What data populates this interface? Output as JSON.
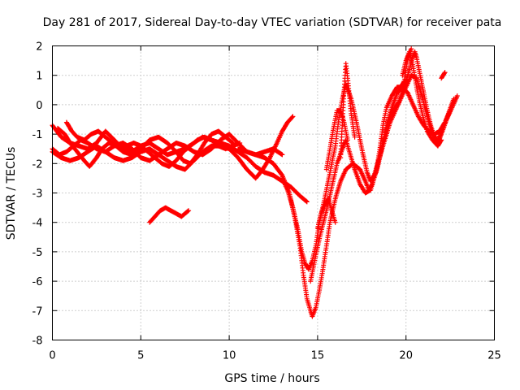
{
  "chart_data": {
    "type": "scatter",
    "title": "Day 281 of 2017, Sidereal Day-to-day VTEC variation (SDTVAR) for receiver pata",
    "xlabel": "GPS time / hours",
    "ylabel": "SDTVAR / TECUs",
    "xlim": [
      0,
      25
    ],
    "ylim": [
      -8,
      2
    ],
    "xticks": [
      "0",
      "5",
      "10",
      "15",
      "20",
      "25"
    ],
    "yticks": [
      "2",
      "1",
      "0",
      "-1",
      "-2",
      "-3",
      "-4",
      "-5",
      "-6",
      "-7",
      "-8"
    ],
    "grid": true,
    "marker": "plus",
    "color": "#ff0000",
    "series": [
      {
        "values": [
          [
            0,
            -0.7
          ],
          [
            0.5,
            -1.1
          ],
          [
            1,
            -1.3
          ],
          [
            1.5,
            -1.4
          ],
          [
            2,
            -1.5
          ],
          [
            2.5,
            -1.3
          ],
          [
            3,
            -0.9
          ],
          [
            3.5,
            -1.2
          ],
          [
            4,
            -1.5
          ],
          [
            4.5,
            -1.6
          ],
          [
            5,
            -1.4
          ],
          [
            5.5,
            -1.3
          ],
          [
            6,
            -1.5
          ],
          [
            6.5,
            -1.7
          ],
          [
            7,
            -1.6
          ],
          [
            7.5,
            -1.5
          ],
          [
            8,
            -1.3
          ],
          [
            8.5,
            -1.1
          ],
          [
            9,
            -1.2
          ],
          [
            9.5,
            -1.3
          ],
          [
            10,
            -1.4
          ],
          [
            10.5,
            -1.6
          ],
          [
            11,
            -1.8
          ],
          [
            11.5,
            -2.1
          ],
          [
            12,
            -2.3
          ],
          [
            12.5,
            -2.4
          ],
          [
            13,
            -2.6
          ],
          [
            13.5,
            -2.8
          ],
          [
            14,
            -3.1
          ],
          [
            14.4,
            -3.3
          ]
        ]
      },
      {
        "values": [
          [
            0,
            -1.6
          ],
          [
            0.5,
            -1.8
          ],
          [
            1,
            -1.9
          ],
          [
            1.5,
            -1.8
          ],
          [
            2,
            -1.6
          ],
          [
            2.5,
            -1.4
          ],
          [
            3,
            -1.6
          ],
          [
            3.5,
            -1.8
          ],
          [
            4,
            -1.9
          ],
          [
            4.5,
            -1.8
          ],
          [
            5,
            -1.6
          ],
          [
            5.5,
            -1.5
          ],
          [
            6,
            -1.7
          ],
          [
            6.5,
            -1.9
          ],
          [
            7,
            -2.1
          ],
          [
            7.5,
            -2.2
          ],
          [
            8,
            -1.9
          ],
          [
            8.5,
            -1.6
          ],
          [
            9,
            -1.4
          ],
          [
            9.5,
            -1.4
          ],
          [
            10,
            -1.5
          ],
          [
            10.5,
            -1.8
          ],
          [
            11,
            -2.2
          ],
          [
            11.5,
            -2.5
          ],
          [
            11.9,
            -2.2
          ],
          [
            12.3,
            -1.8
          ],
          [
            12.7,
            -1.3
          ],
          [
            13,
            -0.9
          ],
          [
            13.3,
            -0.6
          ],
          [
            13.6,
            -0.4
          ]
        ]
      },
      {
        "values": [
          [
            0,
            -1.5
          ],
          [
            0.4,
            -1.7
          ],
          [
            0.8,
            -1.6
          ],
          [
            1.2,
            -1.4
          ],
          [
            1.6,
            -1.2
          ],
          [
            2,
            -1.3
          ],
          [
            2.5,
            -1.5
          ],
          [
            3,
            -1.6
          ],
          [
            3.5,
            -1.4
          ],
          [
            4,
            -1.3
          ],
          [
            4.5,
            -1.5
          ],
          [
            5,
            -1.8
          ],
          [
            5.5,
            -1.9
          ],
          [
            6,
            -1.7
          ],
          [
            6.5,
            -1.5
          ],
          [
            7,
            -1.3
          ],
          [
            7.5,
            -1.4
          ],
          [
            8,
            -1.6
          ],
          [
            8.5,
            -1.7
          ],
          [
            9,
            -1.5
          ],
          [
            9.5,
            -1.2
          ],
          [
            10,
            -1.0
          ],
          [
            10.5,
            -1.3
          ],
          [
            11,
            -1.6
          ],
          [
            11.5,
            -1.7
          ],
          [
            12,
            -1.6
          ],
          [
            12.5,
            -1.5
          ],
          [
            13,
            -1.7
          ]
        ]
      },
      {
        "values": [
          [
            0.3,
            -0.8
          ],
          [
            0.7,
            -1.0
          ],
          [
            1.0,
            -1.3
          ],
          [
            1.4,
            -1.6
          ],
          [
            1.8,
            -1.9
          ],
          [
            2.1,
            -2.1
          ],
          [
            2.5,
            -1.8
          ],
          [
            2.8,
            -1.5
          ],
          [
            3.2,
            -1.3
          ],
          [
            3.6,
            -1.4
          ],
          [
            4,
            -1.6
          ],
          [
            4.5,
            -1.7
          ],
          [
            5,
            -1.5
          ],
          [
            5.5,
            -1.2
          ],
          [
            6,
            -1.1
          ],
          [
            6.5,
            -1.3
          ],
          [
            7,
            -1.6
          ],
          [
            7.4,
            -1.9
          ],
          [
            7.8,
            -2.0
          ],
          [
            8.2,
            -1.7
          ],
          [
            8.6,
            -1.3
          ],
          [
            9,
            -1.0
          ],
          [
            9.4,
            -0.9
          ],
          [
            9.8,
            -1.1
          ],
          [
            10.2,
            -1.3
          ]
        ]
      },
      {
        "values": [
          [
            0.8,
            -0.6
          ],
          [
            1.1,
            -0.9
          ],
          [
            1.4,
            -1.1
          ],
          [
            1.8,
            -1.2
          ],
          [
            2.2,
            -1.0
          ],
          [
            2.6,
            -0.9
          ],
          [
            3,
            -1.1
          ],
          [
            3.4,
            -1.3
          ],
          [
            3.8,
            -1.5
          ],
          [
            4.2,
            -1.4
          ],
          [
            4.6,
            -1.3
          ],
          [
            5,
            -1.4
          ],
          [
            5.4,
            -1.6
          ],
          [
            5.8,
            -1.8
          ],
          [
            6.2,
            -2.0
          ],
          [
            6.6,
            -2.1
          ],
          [
            7,
            -1.9
          ],
          [
            7.4,
            -1.6
          ],
          [
            7.8,
            -1.4
          ],
          [
            8.2,
            -1.2
          ],
          [
            8.6,
            -1.1
          ],
          [
            9,
            -1.2
          ],
          [
            9.4,
            -1.4
          ],
          [
            9.8,
            -1.5
          ],
          [
            10.2,
            -1.4
          ],
          [
            10.6,
            -1.3
          ]
        ]
      },
      {
        "values": [
          [
            5.5,
            -4.0
          ],
          [
            5.8,
            -3.8
          ],
          [
            6.1,
            -3.6
          ],
          [
            6.4,
            -3.5
          ],
          [
            6.7,
            -3.6
          ],
          [
            7.0,
            -3.7
          ],
          [
            7.3,
            -3.8
          ],
          [
            7.5,
            -3.7
          ],
          [
            7.7,
            -3.6
          ]
        ]
      },
      {
        "values": [
          [
            10.5,
            -1.5
          ],
          [
            11,
            -1.6
          ],
          [
            11.5,
            -1.7
          ],
          [
            12,
            -1.8
          ],
          [
            12.5,
            -2.0
          ],
          [
            13,
            -2.4
          ],
          [
            13.4,
            -3.0
          ],
          [
            13.7,
            -3.8
          ],
          [
            14,
            -4.8
          ],
          [
            14.2,
            -5.8
          ],
          [
            14.4,
            -6.6
          ],
          [
            14.6,
            -7.0
          ],
          [
            14.7,
            -7.2
          ],
          [
            14.9,
            -6.9
          ],
          [
            15.1,
            -6.3
          ],
          [
            15.3,
            -5.6
          ],
          [
            15.5,
            -4.8
          ],
          [
            15.7,
            -4.0
          ],
          [
            16,
            -3.2
          ],
          [
            16.3,
            -2.6
          ],
          [
            16.6,
            -2.2
          ],
          [
            17,
            -2.0
          ],
          [
            17.4,
            -2.2
          ],
          [
            17.7,
            -2.6
          ],
          [
            17.9,
            -2.9
          ],
          [
            18.1,
            -2.7
          ],
          [
            18.4,
            -2.1
          ],
          [
            18.7,
            -1.3
          ],
          [
            19,
            -0.6
          ],
          [
            19.3,
            -0.2
          ],
          [
            19.6,
            0.1
          ],
          [
            19.8,
            0.5
          ],
          [
            20,
            0.8
          ],
          [
            20.2,
            1.2
          ],
          [
            20.3,
            1.5
          ],
          [
            20.5,
            1.8
          ],
          [
            20.6,
            1.6
          ],
          [
            20.8,
            1.0
          ],
          [
            21,
            0.4
          ],
          [
            21.2,
            -0.2
          ],
          [
            21.4,
            -0.7
          ],
          [
            21.6,
            -1.1
          ],
          [
            21.8,
            -1.3
          ],
          [
            22,
            -1.0
          ],
          [
            22.3,
            -0.5
          ],
          [
            22.6,
            -0.1
          ],
          [
            22.9,
            0.3
          ]
        ]
      },
      {
        "values": [
          [
            13,
            -2.5
          ],
          [
            13.3,
            -2.9
          ],
          [
            13.6,
            -3.5
          ],
          [
            13.9,
            -4.3
          ],
          [
            14.1,
            -5.0
          ],
          [
            14.3,
            -5.4
          ],
          [
            14.5,
            -5.6
          ],
          [
            14.7,
            -5.3
          ],
          [
            14.9,
            -4.8
          ],
          [
            15.1,
            -4.0
          ],
          [
            15.4,
            -3.2
          ],
          [
            15.7,
            -2.3
          ],
          [
            16,
            -1.4
          ],
          [
            16.2,
            -0.5
          ],
          [
            16.4,
            0.2
          ],
          [
            16.6,
            0.7
          ],
          [
            16.9,
            0.2
          ],
          [
            17.2,
            -0.6
          ],
          [
            17.5,
            -1.5
          ],
          [
            17.8,
            -2.3
          ],
          [
            18,
            -2.6
          ],
          [
            18.3,
            -2.3
          ],
          [
            18.6,
            -1.5
          ],
          [
            18.9,
            -0.7
          ],
          [
            19.2,
            -0.1
          ],
          [
            19.5,
            0.4
          ],
          [
            19.8,
            0.6
          ],
          [
            20.1,
            0.4
          ],
          [
            20.4,
            0.0
          ],
          [
            20.7,
            -0.4
          ],
          [
            21,
            -0.7
          ],
          [
            21.3,
            -0.9
          ],
          [
            21.6,
            -1.0
          ],
          [
            21.9,
            -0.9
          ],
          [
            22.2,
            -0.6
          ],
          [
            22.5,
            -0.2
          ]
        ]
      },
      {
        "values": [
          [
            14.6,
            -6.0
          ],
          [
            14.9,
            -5.1
          ],
          [
            15.2,
            -4.3
          ],
          [
            15.5,
            -3.6
          ],
          [
            15.8,
            -2.8
          ],
          [
            16.1,
            -2.0
          ],
          [
            16.4,
            -1.5
          ],
          [
            16.6,
            -1.2
          ],
          [
            16.8,
            -1.6
          ],
          [
            17.1,
            -2.2
          ],
          [
            17.4,
            -2.7
          ],
          [
            17.7,
            -3.0
          ],
          [
            18,
            -2.9
          ],
          [
            18.2,
            -2.4
          ],
          [
            18.5,
            -1.8
          ],
          [
            18.8,
            -1.2
          ],
          [
            19.1,
            -0.6
          ],
          [
            19.4,
            -0.2
          ],
          [
            19.7,
            0.2
          ],
          [
            20,
            0.6
          ],
          [
            20.3,
            1.0
          ],
          [
            20.6,
            0.9
          ],
          [
            20.9,
            0.3
          ],
          [
            21.2,
            -0.4
          ],
          [
            21.5,
            -1.0
          ],
          [
            21.8,
            -1.2
          ],
          [
            22.1,
            -0.8
          ],
          [
            22.4,
            -0.3
          ],
          [
            22.7,
            0.2
          ]
        ]
      },
      {
        "values": [
          [
            15.5,
            -2.2
          ],
          [
            15.7,
            -1.5
          ],
          [
            15.9,
            -0.8
          ],
          [
            16.1,
            -0.2
          ],
          [
            16.3,
            -0.2
          ],
          [
            16.5,
            -0.6
          ],
          [
            16.7,
            -1.2
          ]
        ]
      },
      {
        "values": [
          [
            16.3,
            -1.8
          ],
          [
            16.4,
            -0.6
          ],
          [
            16.5,
            0.5
          ],
          [
            16.6,
            1.4
          ],
          [
            16.7,
            0.9
          ],
          [
            16.9,
            -0.3
          ],
          [
            17.1,
            -1.1
          ]
        ]
      },
      {
        "values": [
          [
            18.3,
            -2.3
          ],
          [
            18.5,
            -1.6
          ],
          [
            18.7,
            -0.7
          ],
          [
            18.9,
            -0.1
          ],
          [
            19.2,
            0.3
          ],
          [
            19.5,
            0.6
          ],
          [
            19.7,
            0.6
          ],
          [
            19.9,
            0.8
          ],
          [
            20.1,
            1.6
          ],
          [
            20.3,
            1.9
          ]
        ]
      },
      {
        "values": [
          [
            19.8,
            1.0
          ],
          [
            20,
            1.5
          ],
          [
            20.2,
            1.8
          ],
          [
            20.4,
            1.3
          ],
          [
            20.6,
            0.6
          ],
          [
            20.8,
            0.0
          ],
          [
            21,
            -0.5
          ],
          [
            21.2,
            -0.9
          ],
          [
            21.5,
            -1.2
          ],
          [
            21.8,
            -1.4
          ],
          [
            22,
            -1.2
          ]
        ]
      },
      {
        "values": [
          [
            22.0,
            0.9
          ],
          [
            22.1,
            1.0
          ],
          [
            22.2,
            1.1
          ]
        ]
      },
      {
        "values": [
          [
            15,
            -4.2
          ],
          [
            15.2,
            -3.7
          ],
          [
            15.4,
            -3.4
          ],
          [
            15.6,
            -3.2
          ],
          [
            15.8,
            -3.6
          ],
          [
            16,
            -4.0
          ]
        ]
      }
    ]
  }
}
